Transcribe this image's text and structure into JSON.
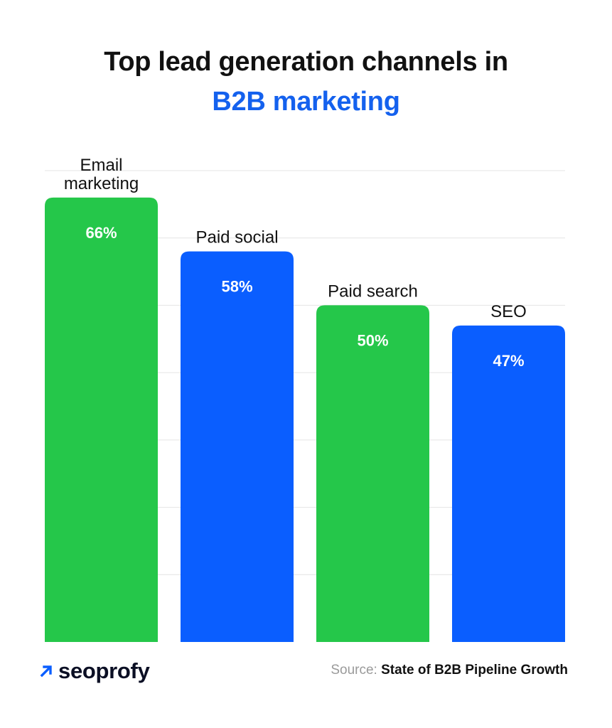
{
  "title": {
    "line1": "Top lead generation channels in",
    "line2": "B2B marketing"
  },
  "colors": {
    "green": "#25c74a",
    "blue": "#0a5eff",
    "title_accent": "#1461ee",
    "grid": "#e4e4e4",
    "brand_arrow": "#0a5eff"
  },
  "chart_data": {
    "type": "bar",
    "categories": [
      "Email marketing",
      "Paid social",
      "Paid search",
      "SEO"
    ],
    "category_lines": [
      [
        "Email",
        "marketing"
      ],
      [
        "Paid social"
      ],
      [
        "Paid search"
      ],
      [
        "SEO"
      ]
    ],
    "values": [
      66,
      58,
      50,
      47
    ],
    "value_labels": [
      "66%",
      "58%",
      "50%",
      "47%"
    ],
    "bar_colors": [
      "green",
      "blue",
      "green",
      "blue"
    ],
    "ylim": [
      0,
      70
    ],
    "grid": true,
    "legend": "none"
  },
  "brand": {
    "icon": "arrow-up-right-icon",
    "name": "seoprofy"
  },
  "source": {
    "label": "Source:",
    "text": "State of B2B Pipeline Growth"
  }
}
